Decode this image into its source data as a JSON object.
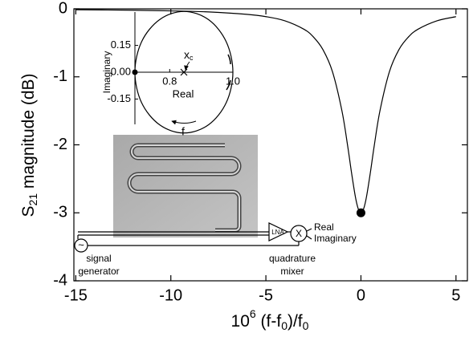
{
  "chart_data": [
    {
      "type": "line",
      "xlabel": [
        "10",
        "6",
        " (f-f",
        "0",
        ")/f",
        "0"
      ],
      "ylabel": [
        "S",
        "21",
        " magnitude (dB)"
      ],
      "x": [
        -15,
        -12,
        -10,
        -8,
        -6,
        -5,
        -4,
        -3,
        -2.5,
        -2,
        -1.5,
        -1,
        -0.7,
        -0.5,
        -0.3,
        -0.15,
        0,
        0.15,
        0.3,
        0.5,
        0.7,
        1,
        1.5,
        2,
        2.5,
        3,
        4,
        5
      ],
      "series": [
        {
          "color": "#000000",
          "values": [
            -0.013,
            -0.021,
            -0.03,
            -0.046,
            -0.081,
            -0.115,
            -0.176,
            -0.3,
            -0.414,
            -0.6,
            -0.923,
            -1.5,
            -2.013,
            -2.4,
            -2.752,
            -2.934,
            -3,
            -2.934,
            -2.752,
            -2.4,
            -2.013,
            -1.5,
            -0.923,
            -0.6,
            -0.414,
            -0.3,
            -0.176,
            -0.115
          ]
        }
      ],
      "highlight": {
        "x": 0,
        "y": -3
      },
      "xlim": [
        -15.1,
        5.6
      ],
      "ylim": [
        -4,
        0
      ],
      "xticks": [
        -15,
        -10,
        -5,
        0,
        5
      ],
      "yticks": [
        0,
        -1,
        -2,
        -3,
        -4
      ]
    },
    {
      "type": "line",
      "inset": true,
      "xlabel": "Real",
      "ylabel": "Imaginary",
      "x": [
        1.0,
        0.979,
        0.923,
        0.845,
        0.768,
        0.711,
        0.69,
        0.711,
        0.768,
        0.845,
        0.923,
        0.979,
        1.0
      ],
      "series": [
        {
          "color": "#000000",
          "values": [
            0,
            0.17,
            0.294,
            0.34,
            0.294,
            0.17,
            0,
            -0.17,
            -0.294,
            -0.34,
            -0.294,
            -0.17,
            0
          ]
        }
      ],
      "start_point": {
        "x": 0.69,
        "y": 0
      },
      "center": {
        "x": 0.845,
        "y": 0
      },
      "center_label": [
        "x",
        "c"
      ],
      "direction_label": "f",
      "xlim": [
        0.69,
        1.0
      ],
      "ylim": [
        -0.35,
        0.35
      ],
      "xticks": [
        0.8,
        {
          "value": 1,
          "label": "1.0"
        }
      ],
      "yticks": [
        0.15,
        {
          "value": 0,
          "label": "0.00"
        },
        -0.15
      ]
    }
  ],
  "schematic": {
    "amplifier": "LNA",
    "mixer_symbol": "X",
    "source_symbol": "~",
    "mixer_outputs": [
      "Real",
      "Imaginary"
    ],
    "source_label": [
      "signal",
      "generator"
    ],
    "mixer_label": [
      "quadrature",
      "mixer"
    ]
  }
}
